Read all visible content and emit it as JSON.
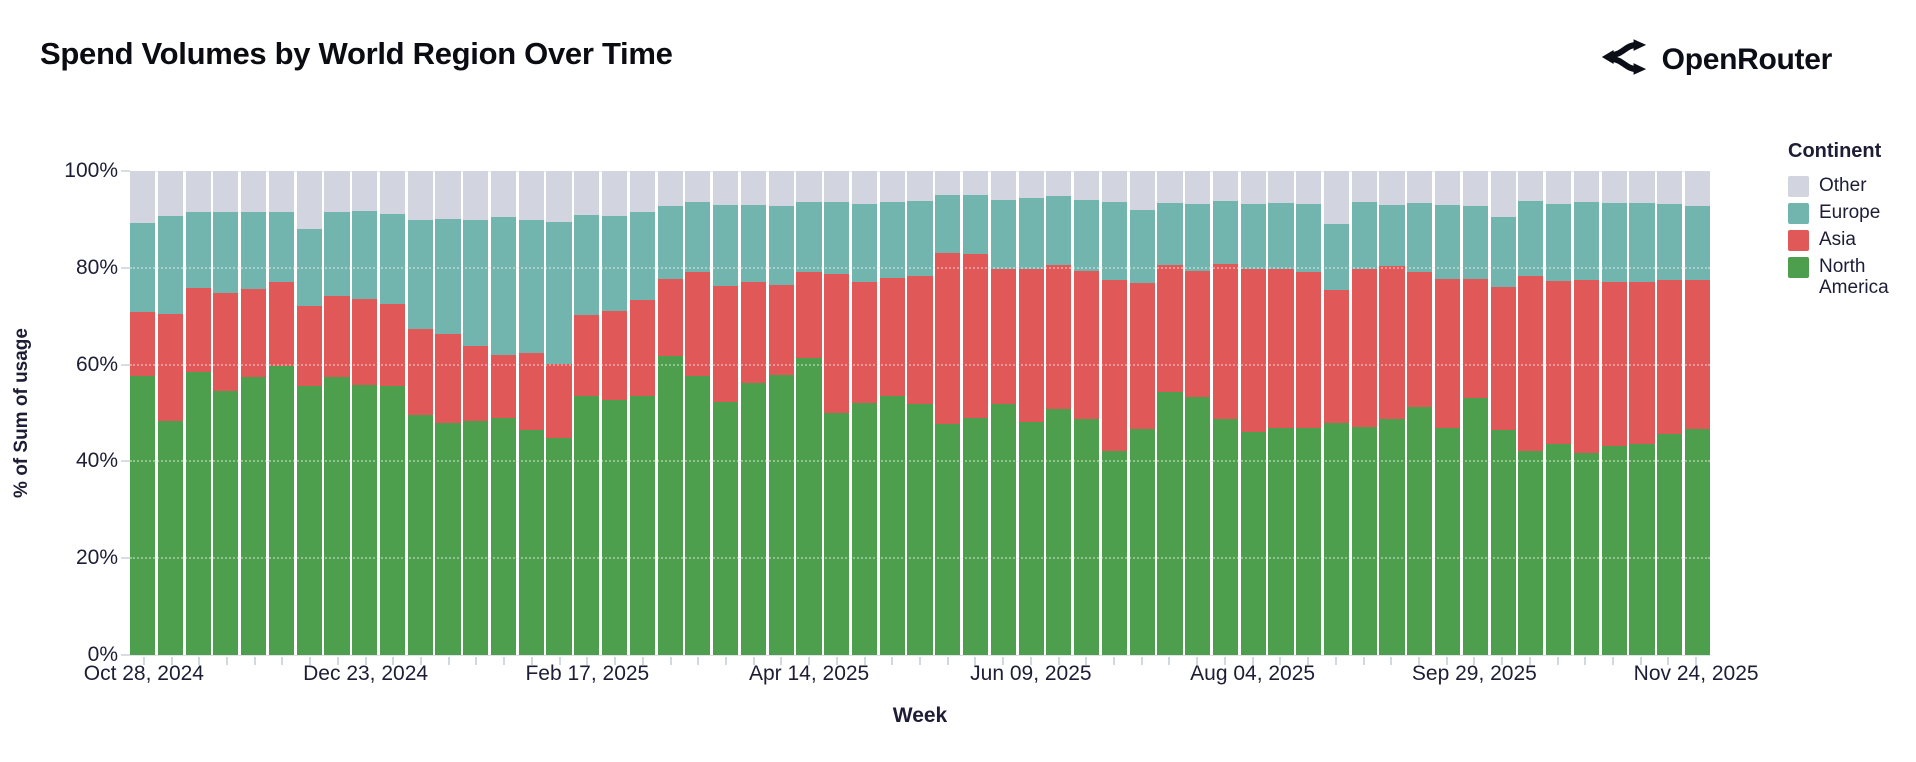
{
  "header": {
    "title": "Spend Volumes by World Region Over Time",
    "logo_text": "OpenRouter"
  },
  "axes": {
    "y_title": "% of Sum of usage",
    "x_title": "Week"
  },
  "legend": {
    "title": "Continent",
    "items": [
      {
        "label": "Other",
        "color": "#d2d4df"
      },
      {
        "label": "Europe",
        "color": "#72b4ae"
      },
      {
        "label": "Asia",
        "color": "#e15858"
      },
      {
        "label": "North America",
        "color": "#4d9e4d"
      }
    ]
  },
  "chart_data": {
    "type": "bar",
    "stacked": true,
    "normalized_percent": true,
    "title": "Spend Volumes by World Region Over Time",
    "xlabel": "Week",
    "ylabel": "% of Sum of usage",
    "ylim": [
      0,
      100
    ],
    "grid": true,
    "legend_position": "right",
    "legend_title": "Continent",
    "y_ticks": [
      {
        "value": 100,
        "label": "100%"
      },
      {
        "value": 80,
        "label": "80%"
      },
      {
        "value": 60,
        "label": "60%"
      },
      {
        "value": 40,
        "label": "40%"
      },
      {
        "value": 20,
        "label": "20%"
      },
      {
        "value": 0,
        "label": "0%"
      }
    ],
    "series_bottom_to_top": [
      {
        "key": "na",
        "name": "North America",
        "color": "#4d9e4d"
      },
      {
        "key": "asia",
        "name": "Asia",
        "color": "#e15858"
      },
      {
        "key": "europe",
        "name": "Europe",
        "color": "#72b4ae"
      },
      {
        "key": "other",
        "name": "Other",
        "color": "#d2d4df"
      }
    ],
    "x_ticks": [
      {
        "index": 0,
        "label": "Oct 28, 2024"
      },
      {
        "index": 8,
        "label": "Dec 23, 2024"
      },
      {
        "index": 16,
        "label": "Feb 17, 2025"
      },
      {
        "index": 24,
        "label": "Apr 14, 2025"
      },
      {
        "index": 32,
        "label": "Jun 09, 2025"
      },
      {
        "index": 40,
        "label": "Aug 04, 2025"
      },
      {
        "index": 48,
        "label": "Sep 29, 2025"
      },
      {
        "index": 56,
        "label": "Nov 24, 2025"
      }
    ],
    "weeks": [
      {
        "date": "2024-10-28",
        "na": 57.6,
        "asia": 13.2,
        "europe": 18.5,
        "other": 10.7
      },
      {
        "date": "2024-11-04",
        "na": 48.4,
        "asia": 22.1,
        "europe": 20.3,
        "other": 9.2
      },
      {
        "date": "2024-11-11",
        "na": 58.5,
        "asia": 17.3,
        "europe": 15.7,
        "other": 8.5
      },
      {
        "date": "2024-11-18",
        "na": 54.6,
        "asia": 20.2,
        "europe": 16.7,
        "other": 8.5
      },
      {
        "date": "2024-11-25",
        "na": 57.5,
        "asia": 18.1,
        "europe": 15.9,
        "other": 8.5
      },
      {
        "date": "2024-12-02",
        "na": 59.7,
        "asia": 17.3,
        "europe": 14.5,
        "other": 8.5
      },
      {
        "date": "2024-12-09",
        "na": 55.6,
        "asia": 16.6,
        "europe": 15.8,
        "other": 12.0
      },
      {
        "date": "2024-12-16",
        "na": 57.5,
        "asia": 16.6,
        "europe": 17.4,
        "other": 8.5
      },
      {
        "date": "2024-12-23",
        "na": 55.8,
        "asia": 17.7,
        "europe": 18.2,
        "other": 8.3
      },
      {
        "date": "2024-12-30",
        "na": 55.6,
        "asia": 17.0,
        "europe": 18.6,
        "other": 8.8
      },
      {
        "date": "2025-01-06",
        "na": 49.5,
        "asia": 17.8,
        "europe": 22.5,
        "other": 10.2
      },
      {
        "date": "2025-01-13",
        "na": 47.9,
        "asia": 18.4,
        "europe": 23.7,
        "other": 10.0
      },
      {
        "date": "2025-01-20",
        "na": 48.4,
        "asia": 15.4,
        "europe": 26.0,
        "other": 10.2
      },
      {
        "date": "2025-01-27",
        "na": 48.9,
        "asia": 13.1,
        "europe": 28.4,
        "other": 9.6
      },
      {
        "date": "2025-02-03",
        "na": 46.5,
        "asia": 15.9,
        "europe": 27.5,
        "other": 10.1
      },
      {
        "date": "2025-02-10",
        "na": 44.8,
        "asia": 15.4,
        "europe": 29.3,
        "other": 10.5
      },
      {
        "date": "2025-02-17",
        "na": 53.5,
        "asia": 16.7,
        "europe": 20.8,
        "other": 9.0
      },
      {
        "date": "2025-02-24",
        "na": 52.6,
        "asia": 18.4,
        "europe": 19.8,
        "other": 9.2
      },
      {
        "date": "2025-03-03",
        "na": 53.6,
        "asia": 19.7,
        "europe": 18.2,
        "other": 8.5
      },
      {
        "date": "2025-03-10",
        "na": 61.8,
        "asia": 15.8,
        "europe": 15.1,
        "other": 7.3
      },
      {
        "date": "2025-03-17",
        "na": 57.6,
        "asia": 21.5,
        "europe": 14.6,
        "other": 6.3
      },
      {
        "date": "2025-03-24",
        "na": 52.3,
        "asia": 23.9,
        "europe": 16.8,
        "other": 7.0
      },
      {
        "date": "2025-03-31",
        "na": 56.1,
        "asia": 21.0,
        "europe": 15.9,
        "other": 7.0
      },
      {
        "date": "2025-04-07",
        "na": 57.9,
        "asia": 18.6,
        "europe": 16.3,
        "other": 7.2
      },
      {
        "date": "2025-04-14",
        "na": 61.4,
        "asia": 17.7,
        "europe": 14.6,
        "other": 6.3
      },
      {
        "date": "2025-04-21",
        "na": 50.0,
        "asia": 28.8,
        "europe": 14.7,
        "other": 6.5
      },
      {
        "date": "2025-04-28",
        "na": 52.1,
        "asia": 25.0,
        "europe": 16.1,
        "other": 6.8
      },
      {
        "date": "2025-05-05",
        "na": 53.6,
        "asia": 24.3,
        "europe": 15.6,
        "other": 6.5
      },
      {
        "date": "2025-05-12",
        "na": 51.8,
        "asia": 26.5,
        "europe": 15.5,
        "other": 6.2
      },
      {
        "date": "2025-05-19",
        "na": 47.7,
        "asia": 35.3,
        "europe": 12.1,
        "other": 4.9
      },
      {
        "date": "2025-05-26",
        "na": 48.9,
        "asia": 33.9,
        "europe": 12.3,
        "other": 4.9
      },
      {
        "date": "2025-06-02",
        "na": 51.9,
        "asia": 27.9,
        "europe": 14.2,
        "other": 6.0
      },
      {
        "date": "2025-06-09",
        "na": 48.1,
        "asia": 31.7,
        "europe": 14.6,
        "other": 5.6
      },
      {
        "date": "2025-06-16",
        "na": 50.9,
        "asia": 29.6,
        "europe": 14.3,
        "other": 5.2
      },
      {
        "date": "2025-06-23",
        "na": 48.8,
        "asia": 30.5,
        "europe": 14.7,
        "other": 6.0
      },
      {
        "date": "2025-06-30",
        "na": 42.2,
        "asia": 35.2,
        "europe": 16.1,
        "other": 6.5
      },
      {
        "date": "2025-07-07",
        "na": 46.7,
        "asia": 30.2,
        "europe": 15.1,
        "other": 8.0
      },
      {
        "date": "2025-07-14",
        "na": 54.3,
        "asia": 26.2,
        "europe": 12.9,
        "other": 6.6
      },
      {
        "date": "2025-07-21",
        "na": 53.4,
        "asia": 25.9,
        "europe": 13.9,
        "other": 6.8
      },
      {
        "date": "2025-07-28",
        "na": 48.8,
        "asia": 32.0,
        "europe": 13.1,
        "other": 6.1
      },
      {
        "date": "2025-08-04",
        "na": 46.0,
        "asia": 33.8,
        "europe": 13.4,
        "other": 6.8
      },
      {
        "date": "2025-08-11",
        "na": 47.0,
        "asia": 32.7,
        "europe": 13.7,
        "other": 6.6
      },
      {
        "date": "2025-08-18",
        "na": 47.0,
        "asia": 32.1,
        "europe": 14.1,
        "other": 6.8
      },
      {
        "date": "2025-08-25",
        "na": 47.9,
        "asia": 27.6,
        "europe": 13.5,
        "other": 11.0
      },
      {
        "date": "2025-09-01",
        "na": 47.2,
        "asia": 32.5,
        "europe": 13.8,
        "other": 6.5
      },
      {
        "date": "2025-09-08",
        "na": 48.8,
        "asia": 31.6,
        "europe": 12.6,
        "other": 7.0
      },
      {
        "date": "2025-09-15",
        "na": 51.2,
        "asia": 27.9,
        "europe": 14.2,
        "other": 6.7
      },
      {
        "date": "2025-09-22",
        "na": 46.8,
        "asia": 30.8,
        "europe": 15.4,
        "other": 7.0
      },
      {
        "date": "2025-09-29",
        "na": 53.2,
        "asia": 24.4,
        "europe": 15.2,
        "other": 7.2
      },
      {
        "date": "2025-10-06",
        "na": 46.4,
        "asia": 29.7,
        "europe": 14.3,
        "other": 9.6
      },
      {
        "date": "2025-10-13",
        "na": 42.1,
        "asia": 36.2,
        "europe": 15.5,
        "other": 6.2
      },
      {
        "date": "2025-10-20",
        "na": 43.6,
        "asia": 33.6,
        "europe": 16.0,
        "other": 6.8
      },
      {
        "date": "2025-10-27",
        "na": 41.8,
        "asia": 35.6,
        "europe": 16.1,
        "other": 6.5
      },
      {
        "date": "2025-11-03",
        "na": 43.2,
        "asia": 33.9,
        "europe": 16.3,
        "other": 6.6
      },
      {
        "date": "2025-11-10",
        "na": 43.6,
        "asia": 33.5,
        "europe": 16.3,
        "other": 6.6
      },
      {
        "date": "2025-11-17",
        "na": 45.7,
        "asia": 31.7,
        "europe": 15.8,
        "other": 6.8
      },
      {
        "date": "2025-11-24",
        "na": 46.7,
        "asia": 30.7,
        "europe": 15.3,
        "other": 7.3
      }
    ]
  }
}
